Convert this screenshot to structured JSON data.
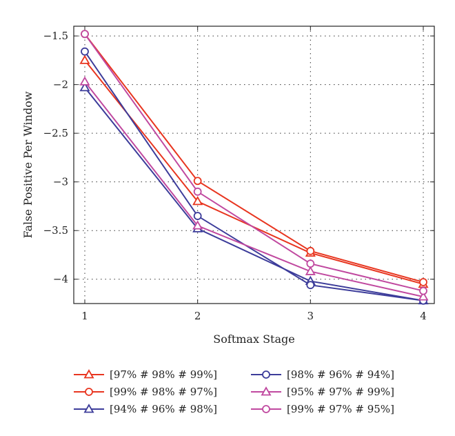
{
  "chart_data": {
    "type": "line",
    "xlabel": "Softmax Stage",
    "ylabel": "False Positive Per Window",
    "x": [
      1,
      2,
      3,
      4
    ],
    "xlim": [
      1,
      4
    ],
    "ylim": [
      -4.25,
      -1.4
    ],
    "xticks": [
      "1",
      "2",
      "3",
      "4"
    ],
    "yticks": [
      -1.5,
      -2,
      -2.5,
      -3,
      -3.5,
      -4
    ],
    "ytick_labels": [
      "−1.5",
      "−2",
      "−2.5",
      "−3",
      "−3.5",
      "−4"
    ],
    "grid": true,
    "legend_position": "bottom",
    "series": [
      {
        "name": "[97% # 98% # 99%]",
        "color": "#e8351f",
        "marker": "triangle",
        "values": [
          -1.75,
          -3.2,
          -3.73,
          -4.05
        ]
      },
      {
        "name": "[99% # 98% # 97%]",
        "color": "#e8351f",
        "marker": "circle",
        "values": [
          -1.48,
          -2.99,
          -3.71,
          -4.03
        ]
      },
      {
        "name": "[94% # 96% # 98%]",
        "color": "#3c3c9a",
        "marker": "triangle",
        "values": [
          -2.03,
          -3.48,
          -4.02,
          -4.22
        ]
      },
      {
        "name": "[98% # 96% # 94%]",
        "color": "#3c3c9a",
        "marker": "circle",
        "values": [
          -1.66,
          -3.35,
          -4.06,
          -4.22
        ]
      },
      {
        "name": "[95% # 97% # 99%]",
        "color": "#c0489f",
        "marker": "triangle",
        "values": [
          -1.97,
          -3.45,
          -3.92,
          -4.18
        ]
      },
      {
        "name": "[99% # 97% # 95%]",
        "color": "#c0489f",
        "marker": "circle",
        "values": [
          -1.48,
          -3.1,
          -3.84,
          -4.12
        ]
      }
    ]
  }
}
